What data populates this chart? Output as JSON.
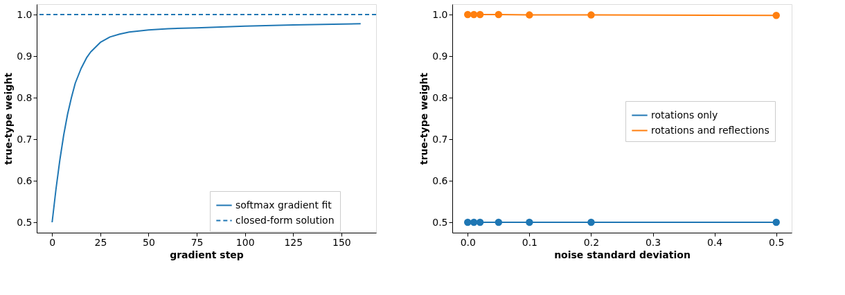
{
  "chart_data": [
    {
      "type": "line",
      "xlabel": "gradient step",
      "ylabel": "true-type weight",
      "xlim": [
        -8,
        168
      ],
      "xticks": [
        0,
        25,
        50,
        75,
        100,
        125,
        150
      ],
      "ylim": [
        0.475,
        1.025
      ],
      "yticks": [
        0.5,
        0.6,
        0.7,
        0.8,
        0.9,
        {
          "value": 1,
          "label": "1.0"
        }
      ],
      "grid": false,
      "legend": "bottom right",
      "line_style": "solid",
      "marker": "none",
      "series": [
        {
          "name": "softmax gradient fit",
          "color": "#1f77b4",
          "x": [
            0,
            2,
            4,
            6,
            8,
            10,
            12,
            15,
            18,
            20,
            25,
            30,
            35,
            40,
            50,
            60,
            75,
            100,
            125,
            160
          ],
          "values": [
            0.5,
            0.58,
            0.65,
            0.71,
            0.76,
            0.8,
            0.835,
            0.87,
            0.897,
            0.91,
            0.933,
            0.946,
            0.953,
            0.958,
            0.963,
            0.966,
            0.968,
            0.972,
            0.975,
            0.978
          ]
        }
      ],
      "ref_lines": [
        {
          "axis": "y",
          "value": 1.0,
          "label": "closed-form solution",
          "color": "#1f77b4",
          "line_style": "dashed"
        }
      ]
    },
    {
      "type": "line",
      "xlabel": "noise standard deviation",
      "ylabel": "true-type weight",
      "xlim": [
        -0.025,
        0.525
      ],
      "xticks": [
        {
          "value": 0,
          "label": "0.0"
        },
        0.1,
        0.2,
        0.3,
        0.4,
        0.5
      ],
      "ylim": [
        0.475,
        1.025
      ],
      "yticks": [
        0.5,
        0.6,
        0.7,
        0.8,
        0.9,
        {
          "value": 1,
          "label": "1.0"
        }
      ],
      "grid": false,
      "legend": "right",
      "line_style": "solid",
      "marker": "circle",
      "x": [
        0,
        0.01,
        0.02,
        0.05,
        0.1,
        0.2,
        0.5
      ],
      "series": [
        {
          "name": "rotations only",
          "color": "#1f77b4",
          "values": [
            0.5,
            0.5,
            0.5,
            0.5,
            0.5,
            0.5,
            0.5
          ]
        },
        {
          "name": "rotations and reflections",
          "color": "#ff7f0e",
          "values": [
            1.0,
            1.0,
            1.0,
            1.0,
            0.999,
            0.999,
            0.998
          ]
        }
      ]
    }
  ]
}
